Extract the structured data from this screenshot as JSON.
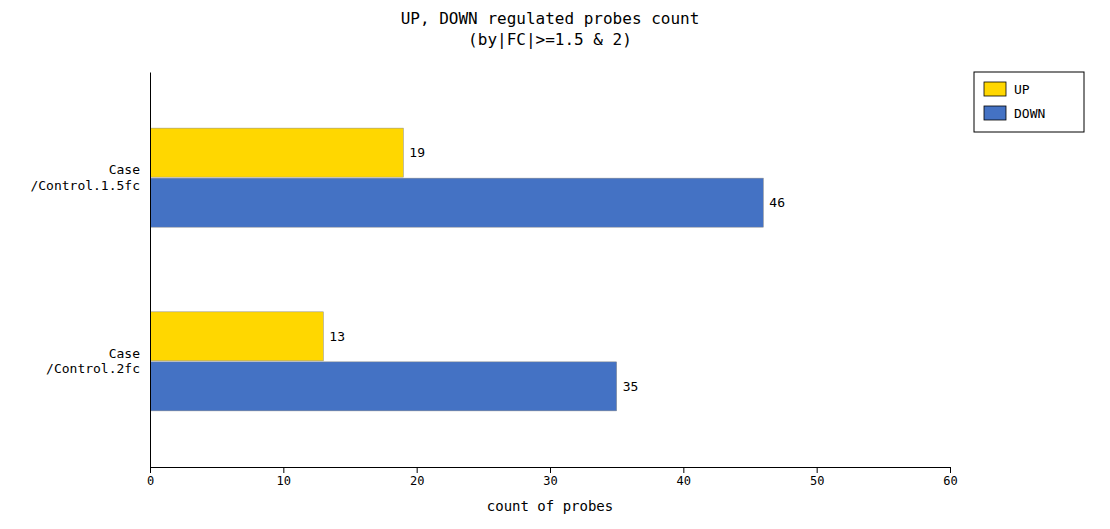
{
  "chart_data": {
    "type": "bar",
    "orientation": "horizontal",
    "title": "UP, DOWN regulated probes count\n(by|FC|>=1.5 & 2)",
    "categories": [
      "Case\n/Control.1.5fc",
      "Case\n/Control.2fc"
    ],
    "series": [
      {
        "name": "UP",
        "color": "#FFD700",
        "values": [
          19,
          13
        ]
      },
      {
        "name": "DOWN",
        "color": "#4472C4",
        "values": [
          46,
          35
        ]
      }
    ],
    "x_label": "count of probes",
    "xlim": [
      0,
      60
    ],
    "xticks": [
      0,
      10,
      20,
      30,
      40,
      50,
      60
    ],
    "data_labels": true,
    "legend": "upper right",
    "grid": false
  }
}
